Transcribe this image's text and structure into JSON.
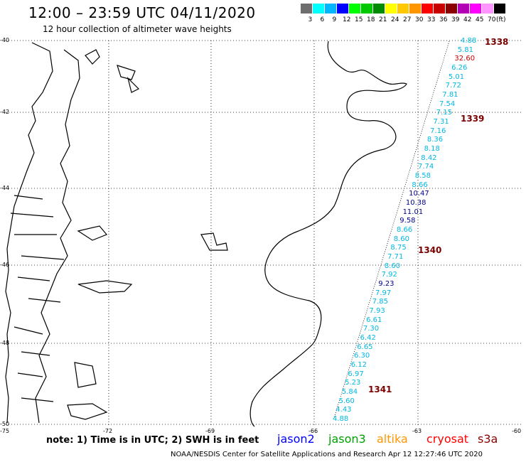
{
  "header": {
    "title": "12:00 – 23:59 UTC 04/11/2020",
    "subtitle": "12 hour collection of altimeter wave heights"
  },
  "color_scale": {
    "colors": [
      "#6e6e6e",
      "#00ffff",
      "#00b7ff",
      "#0000ff",
      "#00ff00",
      "#00c800",
      "#008c00",
      "#ffff00",
      "#ffc800",
      "#ff9600",
      "#ff0000",
      "#c80000",
      "#8c0000",
      "#b400b4",
      "#ff00ff",
      "#ff96ff",
      "#000000"
    ],
    "labels": [
      "3",
      "6",
      "9",
      "12",
      "15",
      "18",
      "21",
      "24",
      "27",
      "30",
      "33",
      "36",
      "39",
      "42",
      "45",
      "70",
      "(ft)"
    ]
  },
  "axes": {
    "lat_labels": [
      "-40",
      "-42",
      "-44",
      "-46",
      "-48",
      "-50"
    ],
    "lon_labels": [
      "-75",
      "-72",
      "-69",
      "-66",
      "-63",
      "-60"
    ]
  },
  "wave_colors": {
    "cyan": "#00b7e0",
    "navy": "#00008b",
    "red": "#c80000"
  },
  "wave_heights": [
    {
      "v": "4.88",
      "c": "cyan"
    },
    {
      "v": "5.81",
      "c": "cyan"
    },
    {
      "v": "32.60",
      "c": "red"
    },
    {
      "v": "6.26",
      "c": "cyan"
    },
    {
      "v": "5.01",
      "c": "cyan"
    },
    {
      "v": "7.72",
      "c": "cyan"
    },
    {
      "v": "7.81",
      "c": "cyan"
    },
    {
      "v": "7.54",
      "c": "cyan"
    },
    {
      "v": "7.15",
      "c": "cyan"
    },
    {
      "v": "7.31",
      "c": "cyan"
    },
    {
      "v": "7.16",
      "c": "cyan"
    },
    {
      "v": "8.36",
      "c": "cyan"
    },
    {
      "v": "8.18",
      "c": "cyan"
    },
    {
      "v": "8.42",
      "c": "cyan"
    },
    {
      "v": "7.74",
      "c": "cyan"
    },
    {
      "v": "8.58",
      "c": "cyan"
    },
    {
      "v": "8.66",
      "c": "cyan"
    },
    {
      "v": "10.47",
      "c": "navy"
    },
    {
      "v": "10.38",
      "c": "navy"
    },
    {
      "v": "11.01",
      "c": "navy"
    },
    {
      "v": "9.58",
      "c": "navy"
    },
    {
      "v": "8.66",
      "c": "cyan"
    },
    {
      "v": "8.60",
      "c": "cyan"
    },
    {
      "v": "8.75",
      "c": "cyan"
    },
    {
      "v": "7.71",
      "c": "cyan"
    },
    {
      "v": "8.60",
      "c": "cyan"
    },
    {
      "v": "7.92",
      "c": "cyan"
    },
    {
      "v": "9.23",
      "c": "navy"
    },
    {
      "v": "7.97",
      "c": "cyan"
    },
    {
      "v": "7.85",
      "c": "cyan"
    },
    {
      "v": "7.93",
      "c": "cyan"
    },
    {
      "v": "6.61",
      "c": "cyan"
    },
    {
      "v": "7.30",
      "c": "cyan"
    },
    {
      "v": "6.42",
      "c": "cyan"
    },
    {
      "v": "6.65",
      "c": "cyan"
    },
    {
      "v": "6.30",
      "c": "cyan"
    },
    {
      "v": "6.12",
      "c": "cyan"
    },
    {
      "v": "6.97",
      "c": "cyan"
    },
    {
      "v": "5.23",
      "c": "cyan"
    },
    {
      "v": "5.84",
      "c": "cyan"
    },
    {
      "v": "5.60",
      "c": "cyan"
    },
    {
      "v": "4.43",
      "c": "cyan"
    },
    {
      "v": "4.88",
      "c": "cyan"
    }
  ],
  "pass_labels": [
    {
      "t": "1338"
    },
    {
      "t": "1339"
    },
    {
      "t": "1340"
    },
    {
      "t": "1341"
    }
  ],
  "footer": {
    "note": "note:  1) Time is in UTC;  2) SWH is in feet",
    "credit": "NOAA/NESDIS Center for Satellite Applications and Research    Apr 12 12:27:46 UTC 2020",
    "satellites": [
      {
        "name": "jason2",
        "color": "#0000ff"
      },
      {
        "name": "jason3",
        "color": "#00a000"
      },
      {
        "name": "altika",
        "color": "#ff9600"
      },
      {
        "name": "cryosat",
        "color": "#ff0000"
      },
      {
        "name": "s3a",
        "color": "#8b0000"
      }
    ]
  }
}
